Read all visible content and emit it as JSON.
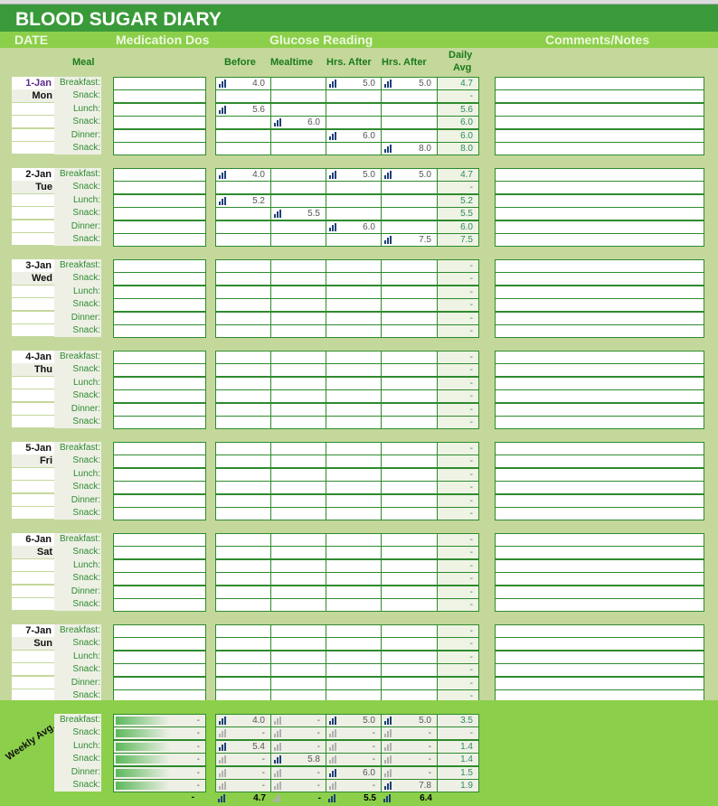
{
  "title": "BLOOD SUGAR DIARY",
  "sections": {
    "date": "DATE",
    "medication": "Medication Dos",
    "glucose": "Glucose Reading",
    "comments": "Comments/Notes"
  },
  "headers": {
    "meal": "Meal",
    "before": "Before",
    "mealtime": "Mealtime",
    "after1": "Hrs. After",
    "after2": "Hrs. After",
    "daily_avg_1": "Daily",
    "daily_avg_2": "Avg"
  },
  "meals": [
    "Breakfast:",
    "Snack:",
    "Lunch:",
    "Snack:",
    "Dinner:",
    "Snack:"
  ],
  "days": [
    {
      "date": "1-Jan",
      "weekday": "Mon",
      "rows": [
        [
          "4.0",
          "",
          "5.0",
          "5.0",
          "4.7"
        ],
        [
          "",
          "",
          "",
          "",
          "-"
        ],
        [
          "5.6",
          "",
          "",
          "",
          "5.6"
        ],
        [
          "",
          "6.0",
          "",
          "",
          "6.0"
        ],
        [
          "",
          "",
          "6.0",
          "",
          "6.0"
        ],
        [
          "",
          "",
          "",
          "8.0",
          "8.0"
        ]
      ]
    },
    {
      "date": "2-Jan",
      "weekday": "Tue",
      "rows": [
        [
          "4.0",
          "",
          "5.0",
          "5.0",
          "4.7"
        ],
        [
          "",
          "",
          "",
          "",
          "-"
        ],
        [
          "5.2",
          "",
          "",
          "",
          "5.2"
        ],
        [
          "",
          "5.5",
          "",
          "",
          "5.5"
        ],
        [
          "",
          "",
          "6.0",
          "",
          "6.0"
        ],
        [
          "",
          "",
          "",
          "7.5",
          "7.5"
        ]
      ]
    },
    {
      "date": "3-Jan",
      "weekday": "Wed",
      "rows": [
        [
          "",
          "",
          "",
          "",
          "-"
        ],
        [
          "",
          "",
          "",
          "",
          "-"
        ],
        [
          "",
          "",
          "",
          "",
          "-"
        ],
        [
          "",
          "",
          "",
          "",
          "-"
        ],
        [
          "",
          "",
          "",
          "",
          "-"
        ],
        [
          "",
          "",
          "",
          "",
          "-"
        ]
      ]
    },
    {
      "date": "4-Jan",
      "weekday": "Thu",
      "rows": [
        [
          "",
          "",
          "",
          "",
          "-"
        ],
        [
          "",
          "",
          "",
          "",
          "-"
        ],
        [
          "",
          "",
          "",
          "",
          "-"
        ],
        [
          "",
          "",
          "",
          "",
          "-"
        ],
        [
          "",
          "",
          "",
          "",
          "-"
        ],
        [
          "",
          "",
          "",
          "",
          "-"
        ]
      ]
    },
    {
      "date": "5-Jan",
      "weekday": "Fri",
      "rows": [
        [
          "",
          "",
          "",
          "",
          "-"
        ],
        [
          "",
          "",
          "",
          "",
          "-"
        ],
        [
          "",
          "",
          "",
          "",
          "-"
        ],
        [
          "",
          "",
          "",
          "",
          "-"
        ],
        [
          "",
          "",
          "",
          "",
          "-"
        ],
        [
          "",
          "",
          "",
          "",
          "-"
        ]
      ]
    },
    {
      "date": "6-Jan",
      "weekday": "Sat",
      "rows": [
        [
          "",
          "",
          "",
          "",
          "-"
        ],
        [
          "",
          "",
          "",
          "",
          "-"
        ],
        [
          "",
          "",
          "",
          "",
          "-"
        ],
        [
          "",
          "",
          "",
          "",
          "-"
        ],
        [
          "",
          "",
          "",
          "",
          "-"
        ],
        [
          "",
          "",
          "",
          "",
          "-"
        ]
      ]
    },
    {
      "date": "7-Jan",
      "weekday": "Sun",
      "rows": [
        [
          "",
          "",
          "",
          "",
          "-"
        ],
        [
          "",
          "",
          "",
          "",
          "-"
        ],
        [
          "",
          "",
          "",
          "",
          "-"
        ],
        [
          "",
          "",
          "",
          "",
          "-"
        ],
        [
          "",
          "",
          "",
          "",
          "-"
        ],
        [
          "",
          "",
          "",
          "",
          "-"
        ]
      ]
    }
  ],
  "weekly": {
    "label": "Weekly Avg.",
    "rows": [
      {
        "med": "-",
        "vals": [
          "4.0",
          "-",
          "5.0",
          "5.0",
          "3.5"
        ]
      },
      {
        "med": "-",
        "vals": [
          "-",
          "-",
          "-",
          "-",
          "-"
        ]
      },
      {
        "med": "-",
        "vals": [
          "5.4",
          "-",
          "-",
          "-",
          "1.4"
        ]
      },
      {
        "med": "-",
        "vals": [
          "-",
          "5.8",
          "-",
          "-",
          "1.4"
        ]
      },
      {
        "med": "-",
        "vals": [
          "-",
          "-",
          "6.0",
          "-",
          "1.5"
        ]
      },
      {
        "med": "-",
        "vals": [
          "-",
          "-",
          "-",
          "7.8",
          "1.9"
        ]
      }
    ],
    "totals": {
      "med": "-",
      "vals": [
        "4.7",
        "-",
        "5.5",
        "6.4"
      ]
    }
  },
  "colors": {
    "title_bg": "#3a9a3a",
    "subheader_bg": "#8ccf4a",
    "body_bg": "#c4d89c",
    "border": "#2e8b2e"
  }
}
